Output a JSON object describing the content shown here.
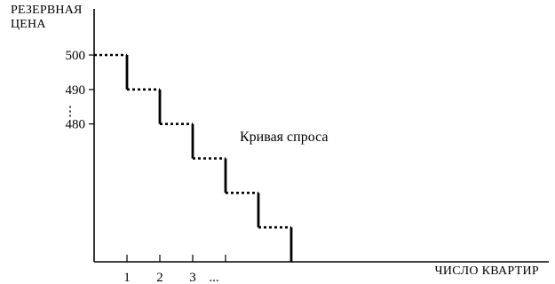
{
  "chart_data": {
    "type": "line",
    "ylabel_lines": [
      "РЕЗЕРВНАЯ",
      "ЦЕНА"
    ],
    "xlabel": "ЧИСЛО КВАРТИР",
    "series": [
      {
        "name": "Кривая спроса",
        "x": [
          0,
          1,
          1,
          2,
          2,
          3,
          3,
          4,
          4,
          5,
          5,
          6,
          6
        ],
        "y": [
          500,
          500,
          490,
          490,
          480,
          480,
          470,
          470,
          460,
          460,
          450,
          450,
          440
        ]
      }
    ],
    "x_ticks": [
      "1",
      "2",
      "3",
      "..."
    ],
    "y_ticks": [
      "500",
      "490",
      "480",
      "⋮"
    ],
    "xlim": [
      0,
      12.7
    ],
    "ylim": [
      440,
      500
    ],
    "grid": false,
    "style": "horizontal segments dotted, vertical segments solid"
  }
}
